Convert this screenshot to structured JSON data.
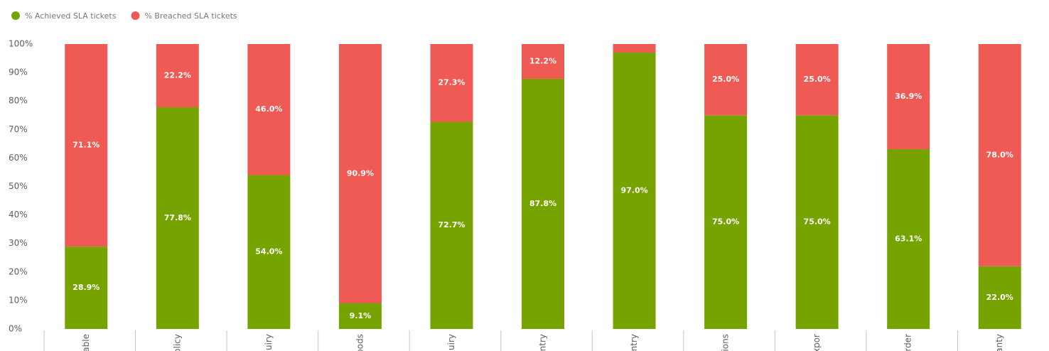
{
  "chart_data": {
    "type": "stacked-bar-100",
    "categories": [
      "able",
      "olicy",
      "uiry",
      "oods",
      "uiry",
      "ntry",
      "ntry",
      "ions",
      "xpor",
      "rder",
      "anty"
    ],
    "series": [
      {
        "name": "% Achieved SLA tickets",
        "color": "#77a300",
        "values": [
          28.9,
          77.8,
          54.0,
          9.1,
          72.7,
          87.8,
          97.0,
          75.0,
          75.0,
          63.1,
          22.0
        ],
        "value_labels": [
          "28.9%",
          "77.8%",
          "54.0%",
          "9.1%",
          "72.7%",
          "87.8%",
          "97.0%",
          "75.0%",
          "75.0%",
          "63.1%",
          "22.0%"
        ]
      },
      {
        "name": "% Breached SLA tickets",
        "color": "#f05a55",
        "values": [
          71.1,
          22.2,
          46.0,
          90.9,
          27.3,
          12.2,
          3.0,
          25.0,
          25.0,
          36.9,
          78.0
        ],
        "value_labels": [
          "71.1%",
          "22.2%",
          "46.0%",
          "90.9%",
          "27.3%",
          "12.2%",
          null,
          "25.0%",
          "25.0%",
          "36.9%",
          "78.0%"
        ]
      }
    ],
    "ylim": [
      0,
      100
    ],
    "yticks": [
      {
        "value": 0,
        "label": "0%"
      },
      {
        "value": 10,
        "label": "10%"
      },
      {
        "value": 20,
        "label": "20%"
      },
      {
        "value": 30,
        "label": "30%"
      },
      {
        "value": 40,
        "label": "40%"
      },
      {
        "value": 50,
        "label": "50%"
      },
      {
        "value": 60,
        "label": "60%"
      },
      {
        "value": 70,
        "label": "70%"
      },
      {
        "value": 80,
        "label": "80%"
      },
      {
        "value": 90,
        "label": "90%"
      },
      {
        "value": 100,
        "label": "100%"
      }
    ],
    "grid": false,
    "legend": "top-left"
  }
}
